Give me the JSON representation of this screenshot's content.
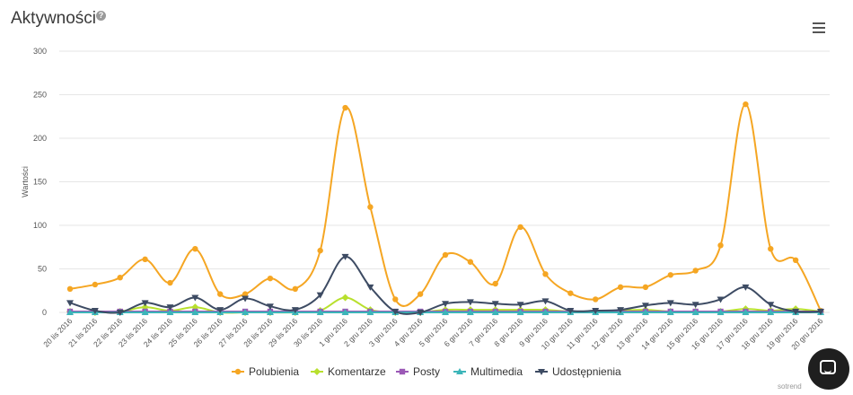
{
  "header": {
    "title": "Aktywności",
    "help_icon": "?",
    "menu_icon": "hamburger-menu-icon"
  },
  "credit": "sotrend",
  "chart_data": {
    "type": "line",
    "ylabel": "Wartości",
    "xlabel": "",
    "ylim": [
      0,
      300
    ],
    "yticks": [
      0,
      50,
      100,
      150,
      200,
      250,
      300
    ],
    "grid": true,
    "legend_position": "bottom",
    "categories": [
      "20 lis 2016",
      "21 lis 2016",
      "22 lis 2016",
      "23 lis 2016",
      "24 lis 2016",
      "25 lis 2016",
      "26 lis 2016",
      "27 lis 2016",
      "28 lis 2016",
      "29 lis 2016",
      "30 lis 2016",
      "1 gru 2016",
      "2 gru 2016",
      "3 gru 2016",
      "4 gru 2016",
      "5 gru 2016",
      "6 gru 2016",
      "7 gru 2016",
      "8 gru 2016",
      "9 gru 2016",
      "10 gru 2016",
      "11 gru 2016",
      "12 gru 2016",
      "13 gru 2016",
      "14 gru 2016",
      "15 gru 2016",
      "16 gru 2016",
      "17 gru 2016",
      "18 gru 2016",
      "19 gru 2016",
      "20 gru 2016"
    ],
    "series": [
      {
        "name": "Polubienia",
        "color": "#f5a623",
        "marker": "circle",
        "values": [
          27,
          32,
          40,
          61,
          34,
          73,
          21,
          21,
          39,
          27,
          71,
          235,
          121,
          15,
          21,
          66,
          58,
          33,
          98,
          44,
          22,
          15,
          29,
          29,
          43,
          48,
          77,
          239,
          73,
          60,
          2
        ]
      },
      {
        "name": "Komentarze",
        "color": "#b8e02e",
        "marker": "diamond",
        "values": [
          1,
          0,
          1,
          6,
          2,
          6,
          0,
          0,
          0,
          0,
          2,
          17,
          3,
          0,
          0,
          3,
          3,
          3,
          3,
          3,
          1,
          1,
          2,
          3,
          1,
          1,
          1,
          4,
          2,
          4,
          1
        ]
      },
      {
        "name": "Posty",
        "color": "#9b59b6",
        "marker": "square",
        "values": [
          1,
          1,
          1,
          1,
          1,
          1,
          1,
          1,
          1,
          1,
          1,
          1,
          1,
          1,
          1,
          1,
          1,
          1,
          1,
          1,
          1,
          1,
          1,
          1,
          1,
          1,
          1,
          1,
          1,
          1,
          1
        ]
      },
      {
        "name": "Multimedia",
        "color": "#3cb5b9",
        "marker": "triangle",
        "values": [
          0,
          0,
          0,
          0,
          0,
          0,
          0,
          0,
          0,
          0,
          0,
          0,
          0,
          0,
          0,
          0,
          0,
          0,
          0,
          0,
          0,
          0,
          0,
          0,
          0,
          0,
          0,
          0,
          0,
          0,
          0
        ]
      },
      {
        "name": "Udostępnienia",
        "color": "#3d4b63",
        "marker": "triangle-down",
        "values": [
          11,
          2,
          0,
          11,
          6,
          17,
          3,
          16,
          7,
          3,
          20,
          64,
          29,
          1,
          0,
          10,
          12,
          10,
          9,
          13,
          2,
          2,
          3,
          8,
          11,
          9,
          15,
          29,
          9,
          1,
          1
        ]
      }
    ]
  }
}
